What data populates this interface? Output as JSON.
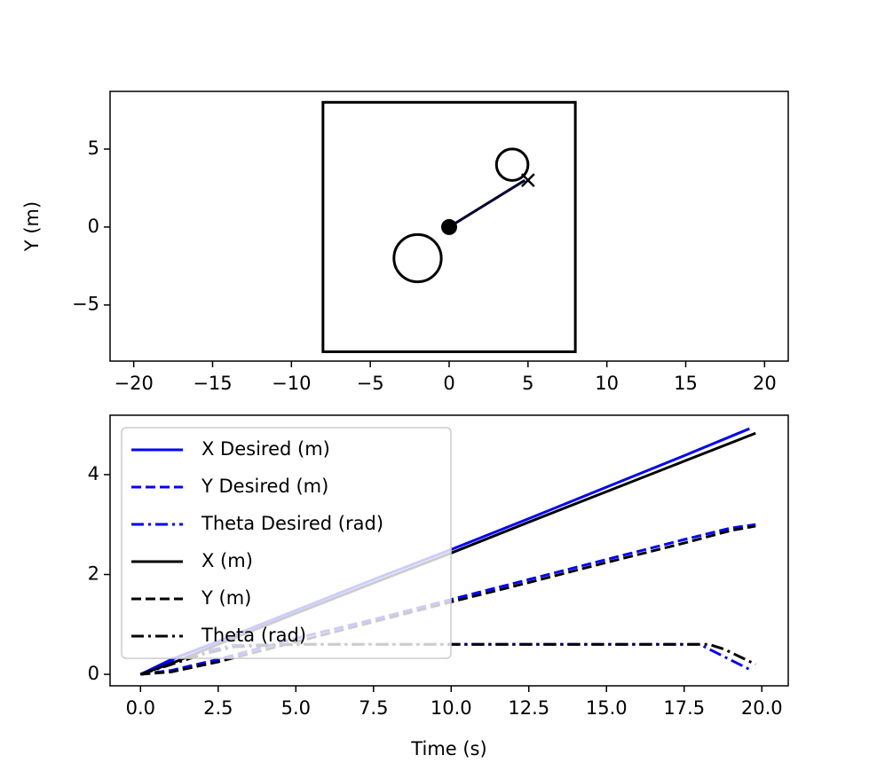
{
  "chart_data": [
    {
      "type": "map",
      "ylabel": "Y (m)",
      "color": "#000000",
      "xlim": [
        -21.5,
        21.5
      ],
      "ylim": [
        -8.6,
        8.7
      ],
      "xticks": [
        {
          "value": -20,
          "label": "−20"
        },
        {
          "value": -15,
          "label": "−15"
        },
        {
          "value": -10,
          "label": "−10"
        },
        {
          "value": -5,
          "label": "−5"
        },
        0,
        5,
        10,
        15,
        20
      ],
      "yticks": [
        {
          "value": -5,
          "label": "−5"
        },
        0,
        5
      ],
      "boundary": {
        "x": [
          -8,
          8
        ],
        "y": [
          -8,
          8
        ]
      },
      "obstacles": [
        {
          "x": -2,
          "y": -2,
          "r": 1.5
        },
        {
          "x": 4,
          "y": 4,
          "r": 1
        }
      ],
      "start": {
        "x": 0,
        "y": 0
      },
      "goal": {
        "x": 5,
        "y": 3
      },
      "path": {
        "x": [
          0,
          4.8
        ],
        "y": [
          0,
          3
        ]
      }
    },
    {
      "type": "line",
      "xlabel": "Time (s)",
      "legend": "upper left",
      "xlim": [
        -0.98,
        20.85
      ],
      "ylim": [
        -0.23,
        5.19
      ],
      "xticks": [
        {
          "value": 0,
          "label": "0.0"
        },
        2.5,
        {
          "value": 5,
          "label": "5.0"
        },
        7.5,
        {
          "value": 10,
          "label": "10.0"
        },
        12.5,
        {
          "value": 15,
          "label": "15.0"
        },
        17.5,
        {
          "value": 20,
          "label": "20.0"
        }
      ],
      "yticks": [
        0,
        2,
        4
      ],
      "series": [
        {
          "name": "X Desired (m)",
          "color": "#0000ff",
          "dash": "solid",
          "x": [
            0,
            1,
            2.5,
            5,
            7.5,
            10,
            12.5,
            15,
            17.5,
            19.6
          ],
          "values": [
            0,
            0.3,
            0.66,
            1.28,
            1.9,
            2.5,
            3.12,
            3.75,
            4.38,
            4.92
          ]
        },
        {
          "name": "Y Desired (m)",
          "color": "#0000ff",
          "dash": "dashed",
          "x": [
            0,
            1,
            2.5,
            5,
            7.5,
            10,
            12.5,
            15,
            17.5,
            19,
            19.8
          ],
          "values": [
            0,
            0.08,
            0.3,
            0.72,
            1.1,
            1.5,
            1.9,
            2.3,
            2.7,
            2.93,
            3.0
          ]
        },
        {
          "name": "Theta Desired (rad)",
          "color": "#0000ff",
          "dash": "dashdot",
          "x": [
            0,
            1,
            2,
            3,
            5,
            10,
            15,
            18,
            19.6
          ],
          "values": [
            0,
            0.25,
            0.45,
            0.58,
            0.6,
            0.6,
            0.6,
            0.6,
            0.1
          ]
        },
        {
          "name": "X (m)",
          "color": "#000000",
          "dash": "solid",
          "x": [
            0,
            1,
            2.5,
            5,
            7.5,
            10,
            12.5,
            15,
            17.5,
            19.8
          ],
          "values": [
            0,
            0.22,
            0.6,
            1.22,
            1.83,
            2.43,
            3.05,
            3.66,
            4.27,
            4.83
          ]
        },
        {
          "name": "Y (m)",
          "color": "#000000",
          "dash": "dashed",
          "x": [
            0,
            1,
            2.5,
            5,
            7.5,
            10,
            12.5,
            15,
            17.5,
            19,
            19.8
          ],
          "values": [
            0,
            0.05,
            0.25,
            0.65,
            1.05,
            1.45,
            1.84,
            2.24,
            2.63,
            2.88,
            2.97
          ]
        },
        {
          "name": "Theta (rad)",
          "color": "#000000",
          "dash": "dashdot",
          "x": [
            0,
            1,
            2,
            3,
            5,
            10,
            15,
            18.3,
            18.8,
            19.8
          ],
          "values": [
            0,
            0.2,
            0.4,
            0.55,
            0.6,
            0.6,
            0.6,
            0.6,
            0.5,
            0.2
          ]
        }
      ]
    }
  ]
}
